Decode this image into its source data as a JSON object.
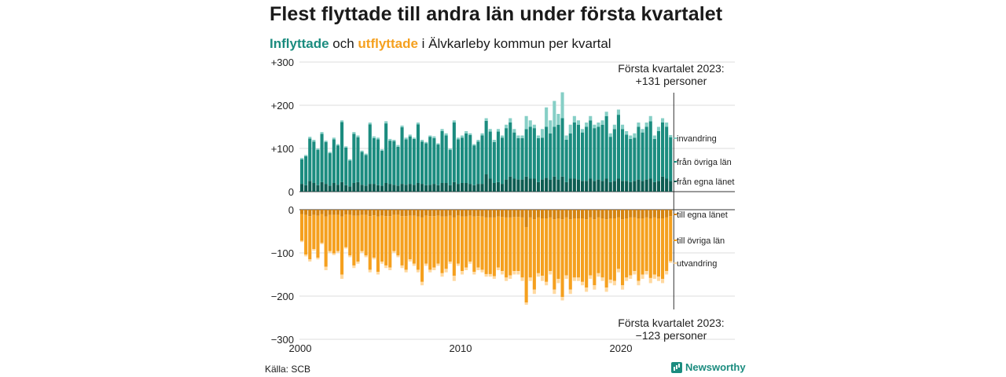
{
  "header": {
    "title": "Flest flyttade till andra län under första kvartalet",
    "subtitle_in": "Inflyttade",
    "subtitle_mid": " och ",
    "subtitle_out": "utflyttade",
    "subtitle_rest": " i Älvkarleby kommun per kvartal"
  },
  "footer": {
    "source": "Källa: SCB",
    "logo_text": "Newsworthy"
  },
  "colors": {
    "egna_in": "#0d5c52",
    "ovriga_in": "#1b8c7f",
    "invandring": "#86cfc6",
    "egna_out": "#d4830f",
    "ovriga_out": "#f5a01e",
    "utvandring": "#ffd9a0"
  },
  "chart_data": {
    "type": "bar",
    "title": "Flest flyttade till andra län under första kvartalet",
    "ylim_top": [
      0,
      300
    ],
    "ylim_bottom": [
      -300,
      0
    ],
    "yticks_top": [
      "+300",
      "+200",
      "+100",
      "0"
    ],
    "yticks_bottom": [
      "0",
      "−100",
      "−200",
      "−300"
    ],
    "xticks": [
      "2000",
      "2010",
      "2020"
    ],
    "start_year": 2000,
    "quarters_count": 93,
    "series_labels_in": [
      "invandring",
      "från övriga län",
      "från egna länet"
    ],
    "series_labels_out": [
      "till egna länet",
      "till övriga län",
      "utvandring"
    ],
    "annotation_top": [
      "Första kvartalet 2023:",
      "+131 personer"
    ],
    "annotation_bottom": [
      "Första kvartalet 2023:",
      "−123 personer"
    ],
    "inflow_total": [
      78,
      85,
      127,
      120,
      100,
      138,
      118,
      92,
      125,
      110,
      165,
      105,
      75,
      138,
      130,
      95,
      88,
      160,
      128,
      125,
      98,
      163,
      122,
      120,
      108,
      153,
      125,
      132,
      125,
      160,
      120,
      115,
      130,
      128,
      112,
      145,
      135,
      100,
      165,
      125,
      130,
      140,
      135,
      110,
      120,
      135,
      170,
      145,
      120,
      145,
      130,
      155,
      170,
      145,
      130,
      130,
      175,
      165,
      155,
      130,
      145,
      195,
      165,
      210,
      180,
      230,
      130,
      155,
      175,
      165,
      145,
      160,
      175,
      155,
      160,
      165,
      185,
      135,
      155,
      190,
      155,
      140,
      130,
      135,
      160,
      145,
      160,
      175,
      130,
      150,
      170,
      160,
      131
    ],
    "inflow_egna": [
      18,
      15,
      25,
      20,
      15,
      22,
      18,
      14,
      20,
      16,
      22,
      15,
      12,
      20,
      22,
      16,
      14,
      18,
      18,
      15,
      14,
      20,
      18,
      16,
      14,
      18,
      16,
      18,
      16,
      20,
      18,
      15,
      16,
      18,
      15,
      20,
      20,
      15,
      22,
      18,
      20,
      20,
      18,
      15,
      18,
      18,
      40,
      30,
      20,
      22,
      18,
      28,
      35,
      30,
      28,
      28,
      35,
      30,
      30,
      22,
      28,
      32,
      28,
      35,
      28,
      35,
      22,
      30,
      30,
      28,
      25,
      25,
      30,
      25,
      28,
      25,
      30,
      22,
      25,
      30,
      25,
      25,
      22,
      25,
      28,
      25,
      28,
      30,
      22,
      25,
      35,
      30,
      25
    ],
    "inflow_inv": [
      3,
      3,
      4,
      4,
      3,
      4,
      3,
      3,
      4,
      3,
      4,
      3,
      3,
      4,
      4,
      3,
      3,
      4,
      4,
      4,
      3,
      5,
      4,
      3,
      4,
      4,
      4,
      4,
      3,
      4,
      4,
      3,
      3,
      4,
      3,
      5,
      5,
      3,
      5,
      4,
      5,
      5,
      4,
      3,
      4,
      5,
      6,
      6,
      5,
      6,
      5,
      8,
      10,
      8,
      6,
      6,
      30,
      15,
      8,
      6,
      20,
      45,
      30,
      60,
      25,
      60,
      10,
      20,
      15,
      10,
      8,
      10,
      10,
      8,
      10,
      10,
      10,
      8,
      10,
      12,
      10,
      8,
      8,
      10,
      10,
      8,
      10,
      12,
      8,
      10,
      10,
      10,
      5
    ],
    "outflow_total": [
      75,
      108,
      120,
      95,
      115,
      80,
      140,
      100,
      105,
      100,
      160,
      90,
      110,
      135,
      125,
      100,
      110,
      145,
      115,
      150,
      125,
      135,
      140,
      100,
      110,
      135,
      145,
      120,
      130,
      145,
      175,
      130,
      145,
      140,
      130,
      155,
      145,
      125,
      165,
      130,
      150,
      140,
      125,
      150,
      140,
      145,
      155,
      155,
      160,
      140,
      150,
      165,
      160,
      150,
      150,
      165,
      220,
      165,
      195,
      155,
      165,
      175,
      150,
      195,
      170,
      210,
      160,
      195,
      165,
      165,
      175,
      190,
      160,
      185,
      155,
      165,
      190,
      170,
      175,
      145,
      185,
      165,
      160,
      150,
      175,
      160,
      150,
      170,
      160,
      165,
      170,
      150,
      123
    ],
    "outflow_egna": [
      10,
      12,
      15,
      12,
      14,
      10,
      16,
      12,
      12,
      12,
      16,
      11,
      12,
      14,
      14,
      12,
      12,
      15,
      13,
      16,
      14,
      15,
      15,
      12,
      12,
      15,
      15,
      14,
      14,
      16,
      18,
      14,
      15,
      15,
      14,
      16,
      16,
      14,
      18,
      14,
      16,
      16,
      14,
      16,
      15,
      16,
      18,
      18,
      18,
      16,
      17,
      18,
      18,
      17,
      17,
      18,
      40,
      18,
      22,
      18,
      20,
      20,
      18,
      22,
      20,
      22,
      18,
      22,
      20,
      20,
      20,
      22,
      18,
      22,
      18,
      20,
      22,
      20,
      20,
      18,
      22,
      20,
      18,
      18,
      20,
      20,
      18,
      20,
      18,
      20,
      20,
      18,
      15
    ],
    "outflow_utv": [
      3,
      4,
      5,
      4,
      4,
      3,
      8,
      4,
      4,
      4,
      10,
      3,
      4,
      6,
      5,
      4,
      4,
      6,
      4,
      6,
      5,
      6,
      6,
      4,
      4,
      6,
      6,
      5,
      5,
      6,
      8,
      5,
      6,
      6,
      5,
      8,
      8,
      5,
      12,
      5,
      8,
      6,
      5,
      6,
      6,
      6,
      6,
      6,
      6,
      6,
      8,
      8,
      8,
      8,
      8,
      8,
      5,
      8,
      10,
      8,
      12,
      8,
      8,
      10,
      10,
      8,
      8,
      10,
      8,
      8,
      8,
      10,
      8,
      10,
      8,
      8,
      10,
      8,
      10,
      8,
      10,
      8,
      8,
      8,
      10,
      10,
      8,
      12,
      10,
      10,
      10,
      8,
      4
    ]
  }
}
